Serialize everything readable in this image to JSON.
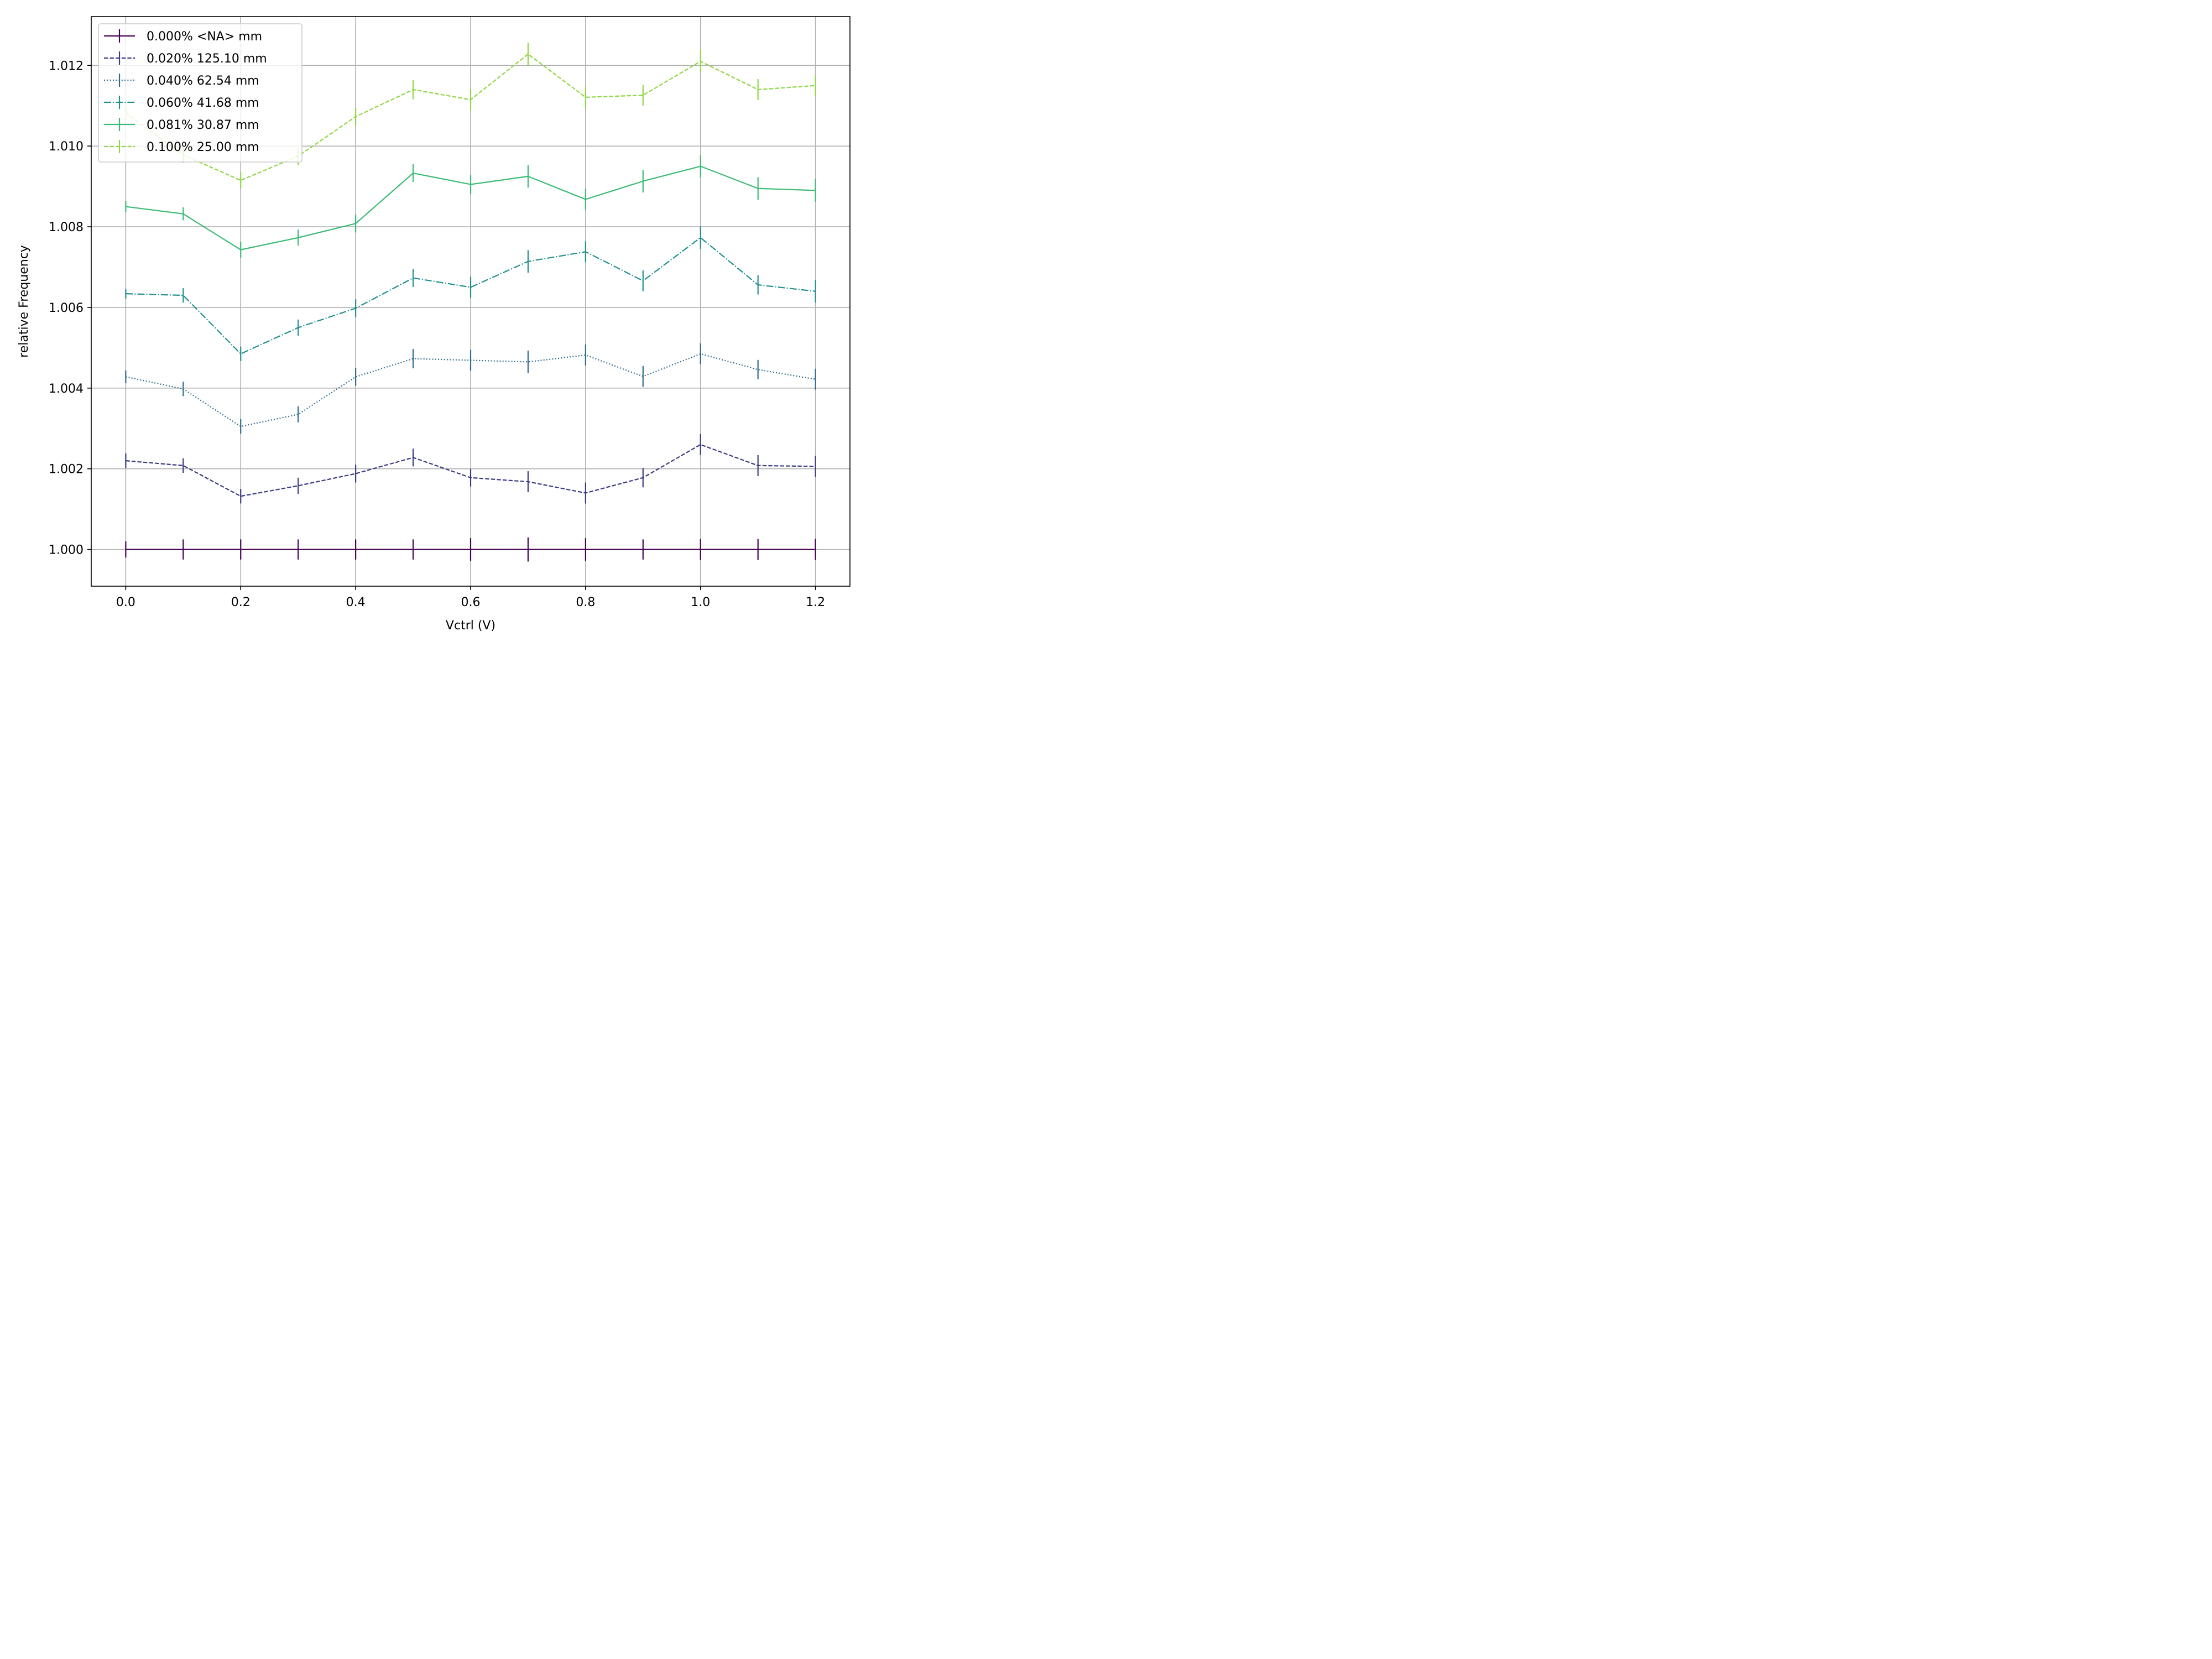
{
  "chart_data": {
    "type": "line",
    "xlabel": "Vctrl (V)",
    "ylabel": "relative Frequency",
    "xlim": [
      -0.06,
      1.26
    ],
    "ylim": [
      0.99909,
      1.01321
    ],
    "xticks": [
      0.0,
      0.2,
      0.4,
      0.6,
      0.8,
      1.0,
      1.2
    ],
    "xtick_labels": [
      "0.0",
      "0.2",
      "0.4",
      "0.6",
      "0.8",
      "1.0",
      "1.2"
    ],
    "yticks": [
      1.0,
      1.002,
      1.004,
      1.006,
      1.008,
      1.01,
      1.012
    ],
    "ytick_labels": [
      "1.000",
      "1.002",
      "1.004",
      "1.006",
      "1.008",
      "1.010",
      "1.012"
    ],
    "grid": true,
    "legend_position": "upper-left",
    "x": [
      0.0,
      0.1,
      0.2,
      0.3,
      0.4,
      0.5,
      0.6,
      0.7,
      0.8,
      0.9,
      1.0,
      1.1,
      1.2
    ],
    "series": [
      {
        "name": "0.000% <NA> mm",
        "color": "#440154",
        "dash": "solid",
        "values": [
          1.0,
          1.0,
          1.0,
          1.0,
          1.0,
          1.0,
          1.0,
          1.0,
          1.0,
          1.0,
          1.0,
          1.0,
          1.0
        ],
        "errors": [
          0.0002,
          0.00025,
          0.00025,
          0.00025,
          0.00025,
          0.00025,
          0.00028,
          0.0003,
          0.00028,
          0.00025,
          0.00026,
          0.00026,
          0.00026
        ]
      },
      {
        "name": "0.020% 125.10 mm",
        "color": "#3b3b83",
        "dash": "dashed",
        "values": [
          1.0022,
          1.00208,
          1.00132,
          1.00158,
          1.00188,
          1.00228,
          1.00178,
          1.00168,
          1.0014,
          1.00178,
          1.0026,
          1.00208,
          1.00206
        ],
        "errors": [
          0.00018,
          0.00018,
          0.00018,
          0.0002,
          0.00022,
          0.00022,
          0.00022,
          0.00026,
          0.00026,
          0.00024,
          0.00026,
          0.00026,
          0.00026
        ]
      },
      {
        "name": "0.040% 62.54 mm",
        "color": "#2f6b8e",
        "dash": "dotted",
        "values": [
          1.00428,
          1.00398,
          1.00305,
          1.00335,
          1.00428,
          1.00473,
          1.00469,
          1.00465,
          1.00482,
          1.00429,
          1.00485,
          1.00446,
          1.00422
        ],
        "errors": [
          0.00016,
          0.00018,
          0.00018,
          0.0002,
          0.00022,
          0.00024,
          0.00026,
          0.00028,
          0.00026,
          0.00026,
          0.00026,
          0.00024,
          0.00026
        ]
      },
      {
        "name": "0.060% 41.68 mm",
        "color": "#21908d",
        "dash": "dashdot",
        "values": [
          1.00634,
          1.0063,
          1.00485,
          1.0055,
          1.00598,
          1.00673,
          1.0065,
          1.00714,
          1.00738,
          1.00666,
          1.00773,
          1.00656,
          1.0064
        ],
        "errors": [
          0.00012,
          0.00018,
          0.00018,
          0.0002,
          0.00022,
          0.00022,
          0.00026,
          0.00028,
          0.00026,
          0.00026,
          0.00028,
          0.00024,
          0.00028
        ]
      },
      {
        "name": "0.081% 30.87 mm",
        "color": "#3bbb75",
        "dash": "solid",
        "values": [
          1.0085,
          1.00832,
          1.00743,
          1.00773,
          1.00808,
          1.00933,
          1.00905,
          1.00925,
          1.00868,
          1.00913,
          1.0095,
          1.00895,
          1.0089
        ],
        "errors": [
          0.00014,
          0.00016,
          0.0002,
          0.0002,
          0.00022,
          0.00022,
          0.00024,
          0.00028,
          0.00026,
          0.00028,
          0.00028,
          0.00028,
          0.00028
        ]
      },
      {
        "name": "0.100% 25.00 mm",
        "color": "#8fd744",
        "dash": "dashed",
        "values": [
          1.01082,
          1.00978,
          1.00915,
          1.00975,
          1.01073,
          1.0114,
          1.01115,
          1.01228,
          1.01121,
          1.01126,
          1.0121,
          1.0114,
          1.0115
        ],
        "errors": [
          0.0002,
          0.0002,
          0.0002,
          0.00022,
          0.00022,
          0.00024,
          0.00026,
          0.00028,
          0.00026,
          0.00026,
          0.00028,
          0.00026,
          0.00026
        ]
      }
    ]
  }
}
